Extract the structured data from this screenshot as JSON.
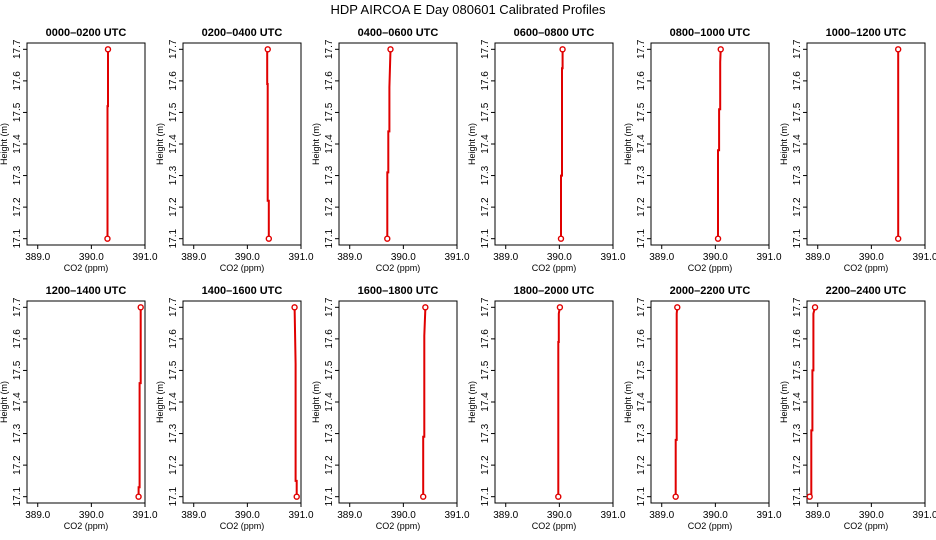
{
  "figure": {
    "title": "HDP AIRCOA E  Day 080601  Calibrated Profiles"
  },
  "colors": {
    "profile": "#e00000",
    "axis": "#000000",
    "background": "#ffffff"
  },
  "chart_data": [
    {
      "type": "line",
      "title": "0000–0200 UTC",
      "xlabel": "CO2 (ppm)",
      "ylabel": "Height (m)",
      "xlim": [
        388.8,
        391.0
      ],
      "ylim": [
        17.08,
        17.72
      ],
      "xticks": [
        "389.0",
        "390.0",
        "391.0"
      ],
      "yticks": [
        "17.1",
        "17.2",
        "17.3",
        "17.4",
        "17.5",
        "17.6",
        "17.7"
      ],
      "series": [
        {
          "x": [
            390.3,
            390.3,
            390.31,
            390.31
          ],
          "y": [
            17.1,
            17.52,
            17.52,
            17.7
          ]
        }
      ],
      "markers": [
        {
          "x": 390.3,
          "y": 17.1
        },
        {
          "x": 390.31,
          "y": 17.7
        }
      ]
    },
    {
      "type": "line",
      "title": "0200–0400 UTC",
      "xlabel": "CO2 (ppm)",
      "ylabel": "Height (m)",
      "xlim": [
        388.8,
        391.0
      ],
      "ylim": [
        17.08,
        17.72
      ],
      "xticks": [
        "389.0",
        "390.0",
        "391.0"
      ],
      "yticks": [
        "17.1",
        "17.2",
        "17.3",
        "17.4",
        "17.5",
        "17.6",
        "17.7"
      ],
      "series": [
        {
          "x": [
            390.4,
            390.4,
            390.38,
            390.38,
            390.37,
            390.37
          ],
          "y": [
            17.1,
            17.22,
            17.22,
            17.59,
            17.59,
            17.7
          ]
        }
      ],
      "markers": [
        {
          "x": 390.4,
          "y": 17.1
        },
        {
          "x": 390.38,
          "y": 17.7
        }
      ]
    },
    {
      "type": "line",
      "title": "0400–0600 UTC",
      "xlabel": "CO2 (ppm)",
      "ylabel": "Height (m)",
      "xlim": [
        388.8,
        391.0
      ],
      "ylim": [
        17.08,
        17.72
      ],
      "xticks": [
        "389.0",
        "390.0",
        "391.0"
      ],
      "yticks": [
        "17.1",
        "17.2",
        "17.3",
        "17.4",
        "17.5",
        "17.6",
        "17.7"
      ],
      "series": [
        {
          "x": [
            389.7,
            389.7,
            389.72,
            389.72,
            389.74,
            389.74,
            389.76
          ],
          "y": [
            17.1,
            17.31,
            17.31,
            17.44,
            17.44,
            17.58,
            17.7
          ]
        }
      ],
      "markers": [
        {
          "x": 389.7,
          "y": 17.1
        },
        {
          "x": 389.76,
          "y": 17.7
        }
      ]
    },
    {
      "type": "line",
      "title": "0600–0800 UTC",
      "xlabel": "CO2 (ppm)",
      "ylabel": "Height (m)",
      "xlim": [
        388.8,
        391.0
      ],
      "ylim": [
        17.08,
        17.72
      ],
      "xticks": [
        "389.0",
        "390.0",
        "391.0"
      ],
      "yticks": [
        "17.1",
        "17.2",
        "17.3",
        "17.4",
        "17.5",
        "17.6",
        "17.7"
      ],
      "series": [
        {
          "x": [
            390.03,
            390.03,
            390.05,
            390.05,
            390.06,
            390.06
          ],
          "y": [
            17.1,
            17.3,
            17.3,
            17.64,
            17.64,
            17.7
          ]
        }
      ],
      "markers": [
        {
          "x": 390.03,
          "y": 17.1
        },
        {
          "x": 390.06,
          "y": 17.7
        }
      ]
    },
    {
      "type": "line",
      "title": "0800–1000 UTC",
      "xlabel": "CO2 (ppm)",
      "ylabel": "Height (m)",
      "xlim": [
        388.8,
        391.0
      ],
      "ylim": [
        17.08,
        17.72
      ],
      "xticks": [
        "389.0",
        "390.0",
        "391.0"
      ],
      "yticks": [
        "17.1",
        "17.2",
        "17.3",
        "17.4",
        "17.5",
        "17.6",
        "17.7"
      ],
      "series": [
        {
          "x": [
            390.05,
            390.05,
            390.07,
            390.07,
            390.09,
            390.09,
            390.1
          ],
          "y": [
            17.1,
            17.38,
            17.38,
            17.51,
            17.51,
            17.66,
            17.7
          ]
        }
      ],
      "markers": [
        {
          "x": 390.05,
          "y": 17.1
        },
        {
          "x": 390.1,
          "y": 17.7
        }
      ]
    },
    {
      "type": "line",
      "title": "1000–1200 UTC",
      "xlabel": "CO2 (ppm)",
      "ylabel": "Height (m)",
      "xlim": [
        388.8,
        391.0
      ],
      "ylim": [
        17.08,
        17.72
      ],
      "xticks": [
        "389.0",
        "390.0",
        "391.0"
      ],
      "yticks": [
        "17.1",
        "17.2",
        "17.3",
        "17.4",
        "17.5",
        "17.6",
        "17.7"
      ],
      "series": [
        {
          "x": [
            390.5,
            390.5
          ],
          "y": [
            17.1,
            17.7
          ]
        }
      ],
      "markers": [
        {
          "x": 390.5,
          "y": 17.1
        },
        {
          "x": 390.5,
          "y": 17.7
        }
      ]
    },
    {
      "type": "line",
      "title": "1200–1400 UTC",
      "xlabel": "CO2 (ppm)",
      "ylabel": "Height (m)",
      "xlim": [
        388.8,
        391.0
      ],
      "ylim": [
        17.08,
        17.72
      ],
      "xticks": [
        "389.0",
        "390.0",
        "391.0"
      ],
      "yticks": [
        "17.1",
        "17.2",
        "17.3",
        "17.4",
        "17.5",
        "17.6",
        "17.7"
      ],
      "series": [
        {
          "x": [
            390.88,
            390.88,
            390.9,
            390.9,
            390.92,
            390.92
          ],
          "y": [
            17.1,
            17.13,
            17.13,
            17.46,
            17.46,
            17.7
          ]
        }
      ],
      "markers": [
        {
          "x": 390.88,
          "y": 17.1
        },
        {
          "x": 390.92,
          "y": 17.7
        }
      ]
    },
    {
      "type": "line",
      "title": "1400–1600 UTC",
      "xlabel": "CO2 (ppm)",
      "ylabel": "Height (m)",
      "xlim": [
        388.8,
        391.0
      ],
      "ylim": [
        17.08,
        17.72
      ],
      "xticks": [
        "389.0",
        "390.0",
        "391.0"
      ],
      "yticks": [
        "17.1",
        "17.2",
        "17.3",
        "17.4",
        "17.5",
        "17.6",
        "17.7"
      ],
      "series": [
        {
          "x": [
            390.92,
            390.92,
            390.9,
            390.9,
            390.88
          ],
          "y": [
            17.1,
            17.15,
            17.15,
            17.52,
            17.7
          ]
        }
      ],
      "markers": [
        {
          "x": 390.92,
          "y": 17.1
        },
        {
          "x": 390.88,
          "y": 17.7
        }
      ]
    },
    {
      "type": "line",
      "title": "1600–1800 UTC",
      "xlabel": "CO2 (ppm)",
      "ylabel": "Height (m)",
      "xlim": [
        388.8,
        391.0
      ],
      "ylim": [
        17.08,
        17.72
      ],
      "xticks": [
        "389.0",
        "390.0",
        "391.0"
      ],
      "yticks": [
        "17.1",
        "17.2",
        "17.3",
        "17.4",
        "17.5",
        "17.6",
        "17.7"
      ],
      "series": [
        {
          "x": [
            390.37,
            390.37,
            390.39,
            390.39,
            390.41
          ],
          "y": [
            17.1,
            17.29,
            17.29,
            17.61,
            17.7
          ]
        }
      ],
      "markers": [
        {
          "x": 390.37,
          "y": 17.1
        },
        {
          "x": 390.41,
          "y": 17.7
        }
      ]
    },
    {
      "type": "line",
      "title": "1800–2000 UTC",
      "xlabel": "CO2 (ppm)",
      "ylabel": "Height (m)",
      "xlim": [
        388.8,
        391.0
      ],
      "ylim": [
        17.08,
        17.72
      ],
      "xticks": [
        "389.0",
        "390.0",
        "391.0"
      ],
      "yticks": [
        "17.1",
        "17.2",
        "17.3",
        "17.4",
        "17.5",
        "17.6",
        "17.7"
      ],
      "series": [
        {
          "x": [
            389.98,
            389.98,
            389.99,
            389.99,
            390.01
          ],
          "y": [
            17.1,
            17.59,
            17.59,
            17.68,
            17.7
          ]
        }
      ],
      "markers": [
        {
          "x": 389.98,
          "y": 17.1
        },
        {
          "x": 390.01,
          "y": 17.7
        }
      ]
    },
    {
      "type": "line",
      "title": "2000–2200 UTC",
      "xlabel": "CO2 (ppm)",
      "ylabel": "Height (m)",
      "xlim": [
        388.8,
        391.0
      ],
      "ylim": [
        17.08,
        17.72
      ],
      "xticks": [
        "389.0",
        "390.0",
        "391.0"
      ],
      "yticks": [
        "17.1",
        "17.2",
        "17.3",
        "17.4",
        "17.5",
        "17.6",
        "17.7"
      ],
      "series": [
        {
          "x": [
            389.26,
            389.26,
            389.28,
            389.28,
            389.29
          ],
          "y": [
            17.1,
            17.28,
            17.28,
            17.68,
            17.7
          ]
        }
      ],
      "markers": [
        {
          "x": 389.26,
          "y": 17.1
        },
        {
          "x": 389.29,
          "y": 17.7
        }
      ]
    },
    {
      "type": "line",
      "title": "2200–2400 UTC",
      "xlabel": "CO2 (ppm)",
      "ylabel": "Height (m)",
      "xlim": [
        388.8,
        391.0
      ],
      "ylim": [
        17.08,
        17.72
      ],
      "xticks": [
        "389.0",
        "390.0",
        "391.0"
      ],
      "yticks": [
        "17.1",
        "17.2",
        "17.3",
        "17.4",
        "17.5",
        "17.6",
        "17.7"
      ],
      "series": [
        {
          "x": [
            388.85,
            388.88,
            388.88,
            388.9,
            388.9,
            388.92,
            388.92,
            388.95
          ],
          "y": [
            17.1,
            17.1,
            17.31,
            17.31,
            17.5,
            17.5,
            17.68,
            17.7
          ]
        }
      ],
      "markers": [
        {
          "x": 388.85,
          "y": 17.1
        },
        {
          "x": 388.95,
          "y": 17.7
        }
      ]
    }
  ]
}
